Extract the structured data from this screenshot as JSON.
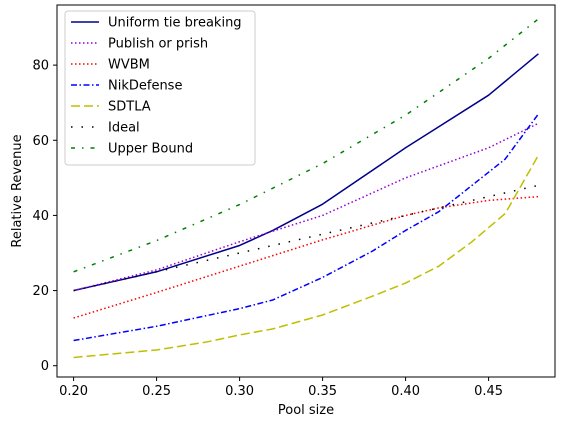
{
  "chart_data": {
    "type": "line",
    "title": "",
    "xlabel": "Pool size",
    "ylabel": "Relative Revenue",
    "xlim": [
      0.19,
      0.49
    ],
    "ylim": [
      -3,
      96
    ],
    "xticks": [
      0.2,
      0.25,
      0.3,
      0.35,
      0.4,
      0.45
    ],
    "xtick_labels": [
      "0.20",
      "0.25",
      "0.30",
      "0.35",
      "0.40",
      "0.45"
    ],
    "yticks": [
      0,
      20,
      40,
      60,
      80
    ],
    "ytick_labels": [
      "0",
      "20",
      "40",
      "60",
      "80"
    ],
    "grid": false,
    "legend_position": "top-left",
    "series": [
      {
        "name": "Uniform tie breaking",
        "color": "#00008b",
        "style": "solid",
        "x": [
          0.2,
          0.25,
          0.3,
          0.32,
          0.35,
          0.4,
          0.45,
          0.48
        ],
        "y": [
          20.0,
          25.0,
          32.0,
          36.0,
          43.0,
          58.0,
          72.0,
          83.0
        ]
      },
      {
        "name": "Publish or prish",
        "color": "#9400d3",
        "style": "dotted",
        "x": [
          0.2,
          0.25,
          0.3,
          0.35,
          0.4,
          0.45,
          0.48
        ],
        "y": [
          20.0,
          25.5,
          33.0,
          40.0,
          50.0,
          58.0,
          64.5
        ]
      },
      {
        "name": "WVBM",
        "color": "#ff0000",
        "style": "dotted",
        "x": [
          0.2,
          0.25,
          0.3,
          0.35,
          0.4,
          0.42,
          0.45,
          0.48
        ],
        "y": [
          12.7,
          19.5,
          26.5,
          33.5,
          40.0,
          42.0,
          44.0,
          45.0
        ]
      },
      {
        "name": "NikDefense",
        "color": "#0000ff",
        "style": "dashdot",
        "x": [
          0.2,
          0.25,
          0.3,
          0.32,
          0.35,
          0.38,
          0.4,
          0.42,
          0.44,
          0.46,
          0.48
        ],
        "y": [
          6.7,
          10.5,
          15.2,
          17.5,
          23.5,
          30.5,
          36.0,
          41.0,
          48.0,
          55.0,
          67.0
        ]
      },
      {
        "name": "SDTLA",
        "color": "#bfbf00",
        "style": "dashed",
        "x": [
          0.2,
          0.25,
          0.28,
          0.3,
          0.32,
          0.35,
          0.38,
          0.4,
          0.42,
          0.44,
          0.46,
          0.48
        ],
        "y": [
          2.2,
          4.2,
          6.3,
          8.2,
          9.8,
          13.5,
          18.5,
          22.0,
          26.5,
          33.0,
          40.5,
          56.0
        ]
      },
      {
        "name": "Ideal",
        "color": "#000000",
        "style": "loosedot",
        "x": [
          0.2,
          0.25,
          0.3,
          0.35,
          0.4,
          0.45,
          0.48
        ],
        "y": [
          20.0,
          25.0,
          30.0,
          35.0,
          40.0,
          45.0,
          48.0
        ]
      },
      {
        "name": "Upper Bound",
        "color": "#008000",
        "style": "loosedashdot",
        "x": [
          0.2,
          0.25,
          0.3,
          0.35,
          0.4,
          0.45,
          0.48
        ],
        "y": [
          25.0,
          33.3,
          42.9,
          53.8,
          66.7,
          81.8,
          92.3
        ]
      }
    ]
  }
}
